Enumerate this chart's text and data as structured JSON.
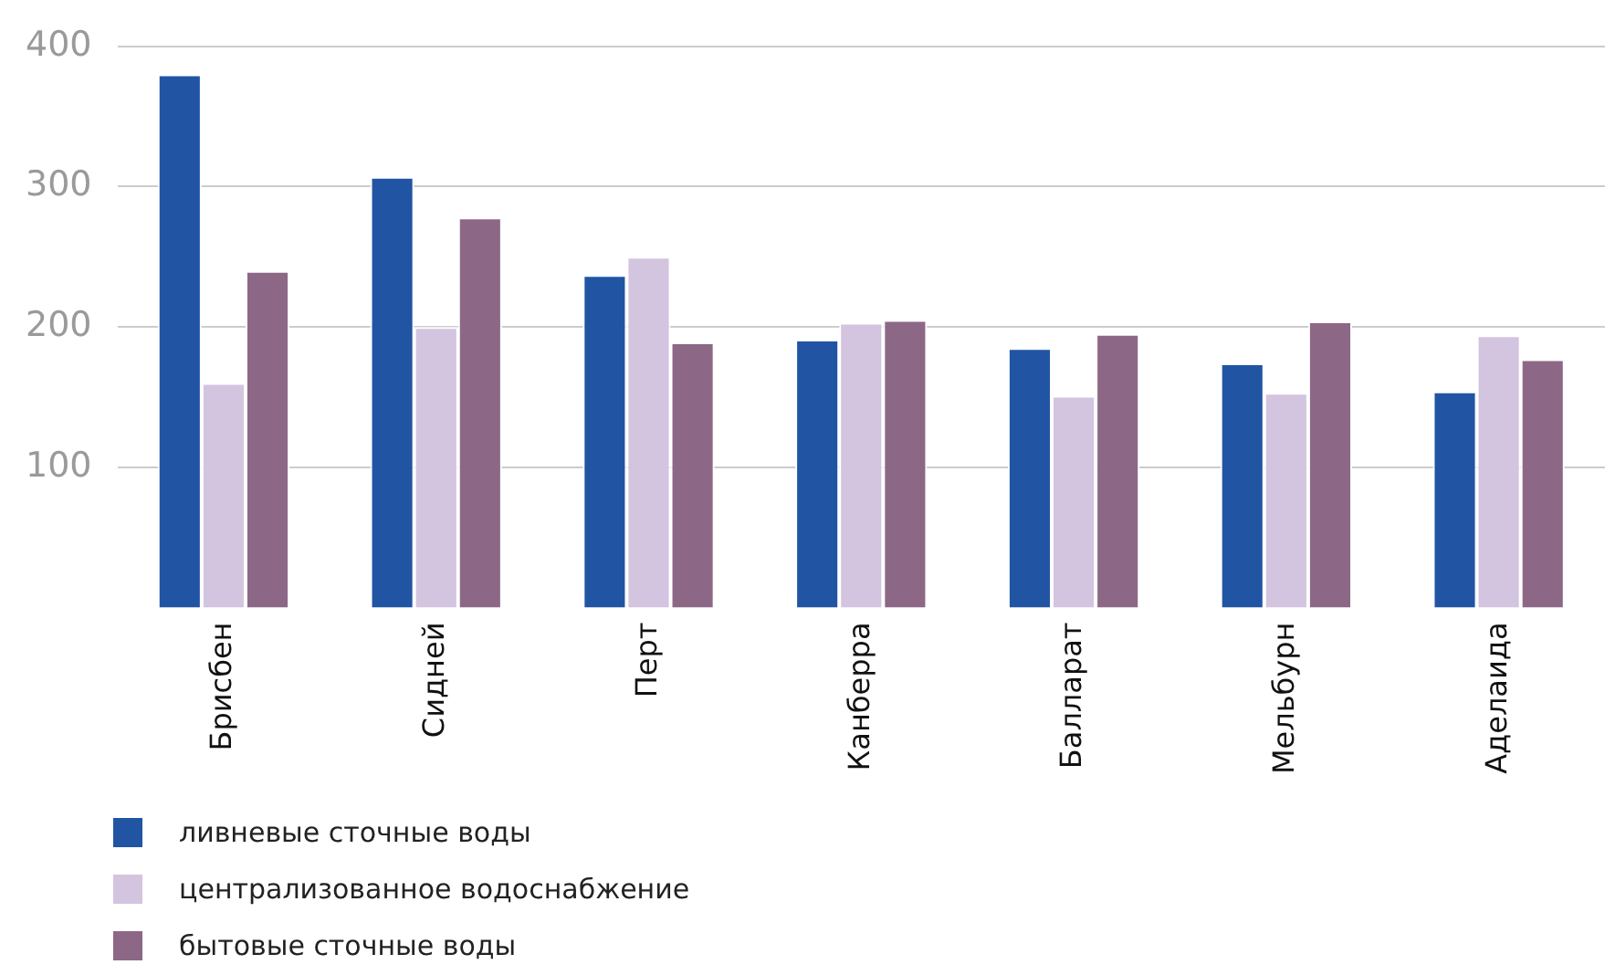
{
  "chart_data": {
    "type": "bar",
    "categories": [
      "Брисбен",
      "Сидней",
      "Перт",
      "Канберра",
      "Балларат",
      "Мельбурн",
      "Аделаида"
    ],
    "series": [
      {
        "name": "ливневые сточные воды",
        "color": "#2155a3",
        "values": [
          380,
          307,
          237,
          191,
          185,
          174,
          154
        ]
      },
      {
        "name": "централизованное водоснабжение",
        "color": "#d3c4e0",
        "values": [
          160,
          200,
          250,
          203,
          151,
          153,
          194
        ]
      },
      {
        "name": "бытовые сточные воды",
        "color": "#8c6886",
        "values": [
          240,
          278,
          189,
          205,
          195,
          204,
          177
        ]
      }
    ],
    "ylim": [
      0,
      400
    ],
    "yticks": [
      100,
      200,
      300,
      400
    ],
    "grid": "y",
    "legend": "bottom"
  }
}
